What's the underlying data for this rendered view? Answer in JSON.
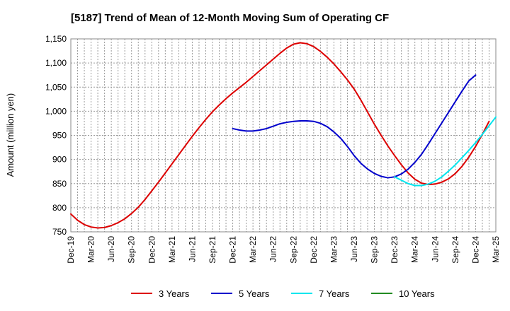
{
  "chart_data": {
    "type": "line",
    "title": "[5187]  Trend of Mean of 12-Month Moving Sum of Operating CF",
    "xlabel": "",
    "ylabel": "Amount (million yen)",
    "ylim": [
      750,
      1150
    ],
    "yticks": [
      750,
      800,
      850,
      900,
      950,
      1000,
      1050,
      1100,
      1150
    ],
    "ytick_labels": [
      "750",
      "800",
      "850",
      "900",
      "950",
      "1,000",
      "1,050",
      "1,100",
      "1,150"
    ],
    "x_tick_labels": [
      "Dec-19",
      "Mar-20",
      "Jun-20",
      "Sep-20",
      "Dec-20",
      "Mar-21",
      "Jun-21",
      "Sep-21",
      "Dec-21",
      "Mar-22",
      "Jun-22",
      "Sep-22",
      "Dec-22",
      "Mar-23",
      "Jun-23",
      "Sep-23",
      "Dec-23",
      "Mar-24",
      "Jun-24",
      "Sep-24",
      "Dec-24",
      "Mar-25"
    ],
    "grid": true,
    "legend_position": "bottom",
    "series": [
      {
        "name": "3 Years",
        "color": "#dd0000",
        "start_index": 0,
        "values": [
          787,
          774,
          765,
          760,
          758,
          759,
          763,
          769,
          777,
          788,
          801,
          817,
          835,
          853,
          872,
          891,
          910,
          929,
          948,
          966,
          983,
          999,
          1013,
          1026,
          1038,
          1049,
          1060,
          1072,
          1084,
          1096,
          1108,
          1120,
          1131,
          1139,
          1142,
          1140,
          1134,
          1124,
          1112,
          1098,
          1082,
          1065,
          1046,
          1023,
          998,
          973,
          950,
          928,
          908,
          889,
          872,
          859,
          851,
          848,
          849,
          853,
          860,
          871,
          886,
          905,
          927,
          952,
          979
        ]
      },
      {
        "name": "5 Years",
        "color": "#0000cc",
        "start_index": 24,
        "values": [
          964,
          961,
          959,
          959,
          961,
          964,
          969,
          974,
          977,
          979,
          980,
          980,
          979,
          975,
          968,
          957,
          944,
          927,
          908,
          892,
          880,
          871,
          865,
          862,
          864,
          870,
          880,
          894,
          911,
          932,
          954,
          976,
          998,
          1020,
          1042,
          1063,
          1075
        ]
      },
      {
        "name": "7 Years",
        "color": "#00e5ee",
        "start_index": 48,
        "values": [
          864,
          857,
          850,
          846,
          846,
          849,
          855,
          864,
          876,
          889,
          904,
          919,
          935,
          952,
          970,
          988
        ]
      },
      {
        "name": "10 Years",
        "color": "#228b22",
        "start_index": 0,
        "values": []
      }
    ]
  }
}
